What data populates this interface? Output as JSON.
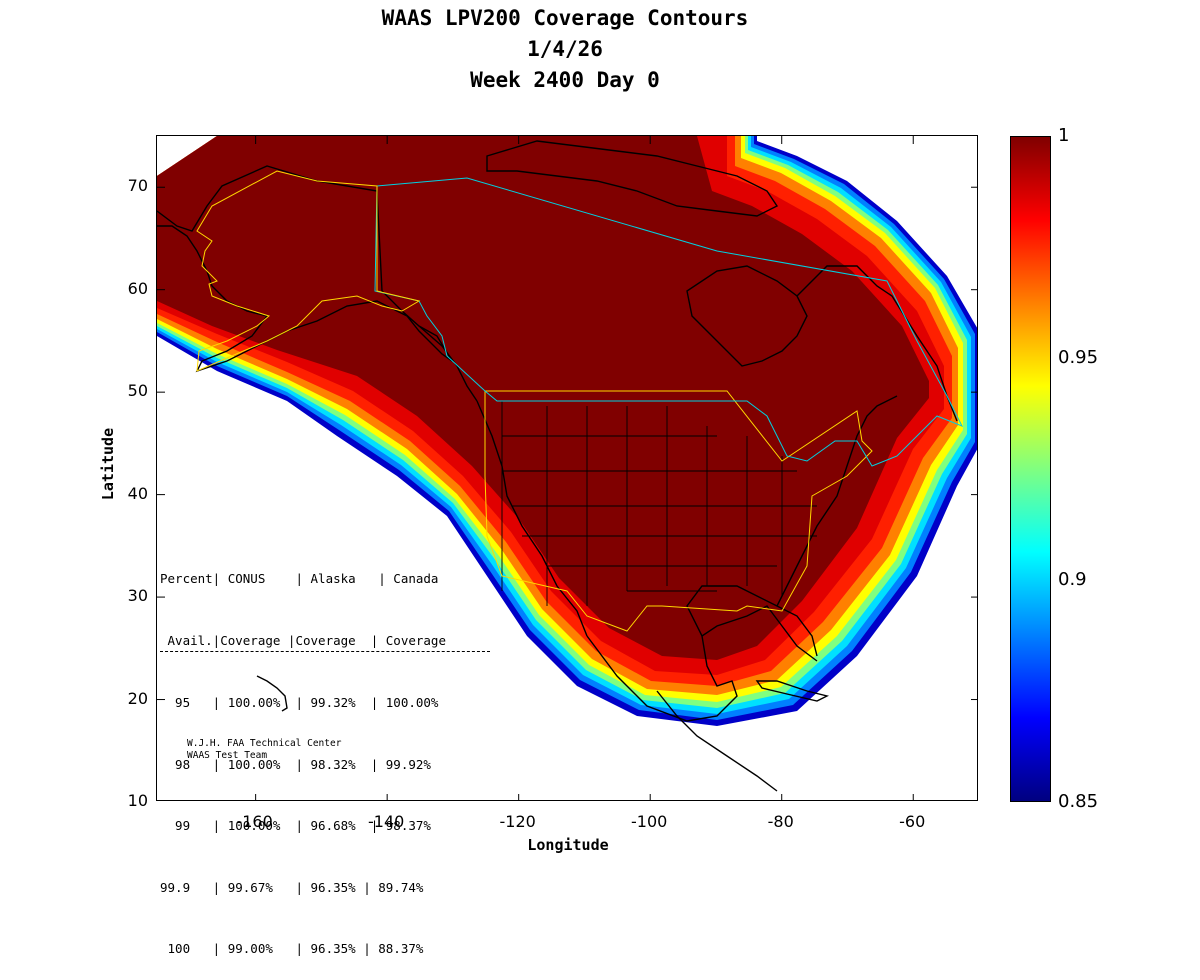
{
  "title": {
    "line1": "WAAS LPV200 Coverage Contours",
    "line2": "1/4/26",
    "line3": "Week 2400 Day 0"
  },
  "axes": {
    "xlabel": "Longitude",
    "ylabel": "Latitude",
    "xlim": [
      -175,
      -50
    ],
    "ylim": [
      10,
      75
    ],
    "xticks": [
      "-160",
      "-140",
      "-120",
      "-100",
      "-80",
      "-60"
    ],
    "yticks": [
      "70",
      "60",
      "50",
      "40",
      "30",
      "20",
      "10"
    ]
  },
  "colorbar": {
    "range": [
      0.85,
      1.0
    ],
    "labels": [
      "1",
      "0.95",
      "0.9",
      "0.85"
    ],
    "colors": [
      "#000080",
      "#0000ff",
      "#0080ff",
      "#00ffff",
      "#80ff80",
      "#ffff00",
      "#ff8000",
      "#ff0000",
      "#800000"
    ]
  },
  "stats_table": {
    "header1": "Percent| CONUS    | Alaska   | Canada",
    "header2": " Avail.|Coverage |Coverage  | Coverage",
    "rows": [
      {
        "avail": "95",
        "conus": "100.00%",
        "alaska": "99.32%",
        "canada": "100.00%",
        "text": "  95   | 100.00%  | 99.32%  | 100.00%"
      },
      {
        "avail": "98",
        "conus": "100.00%",
        "alaska": "98.32%",
        "canada": "99.92%",
        "text": "  98   | 100.00%  | 98.32%  | 99.92%"
      },
      {
        "avail": "99",
        "conus": "100.00%",
        "alaska": "96.68%",
        "canada": "98.37%",
        "text": "  99   | 100.00%  | 96.68%  | 98.37%"
      },
      {
        "avail": "99.9",
        "conus": "99.67%",
        "alaska": "96.35%",
        "canada": "89.74%",
        "text": "99.9   | 99.67%   | 96.35% | 89.74%"
      },
      {
        "avail": "100",
        "conus": "99.00%",
        "alaska": "96.35%",
        "canada": "88.37%",
        "text": " 100   | 99.00%   | 96.35% | 88.37%"
      }
    ]
  },
  "credit": {
    "line1": "W.J.H. FAA Technical Center",
    "line2": "WAAS Test Team"
  },
  "chart_data": {
    "type": "heatmap",
    "title": "WAAS LPV200 Coverage Contours 1/4/26 Week 2400 Day 0",
    "xlabel": "Longitude",
    "ylabel": "Latitude",
    "xlim": [
      -175,
      -50
    ],
    "ylim": [
      10,
      75
    ],
    "colorbar_range": [
      0.85,
      1.0
    ],
    "colorbar_ticks": [
      1,
      0.95,
      0.9,
      0.85
    ],
    "coverage_table": {
      "columns": [
        "Percent Avail.",
        "CONUS Coverage",
        "Alaska Coverage",
        "Canada Coverage"
      ],
      "rows": [
        [
          "95",
          "100.00%",
          "99.32%",
          "100.00%"
        ],
        [
          "98",
          "100.00%",
          "98.32%",
          "99.92%"
        ],
        [
          "99",
          "100.00%",
          "96.68%",
          "98.37%"
        ],
        [
          "99.9",
          "99.67%",
          "96.35%",
          "89.74%"
        ],
        [
          "100",
          "99.00%",
          "96.35%",
          "88.37%"
        ]
      ]
    }
  }
}
